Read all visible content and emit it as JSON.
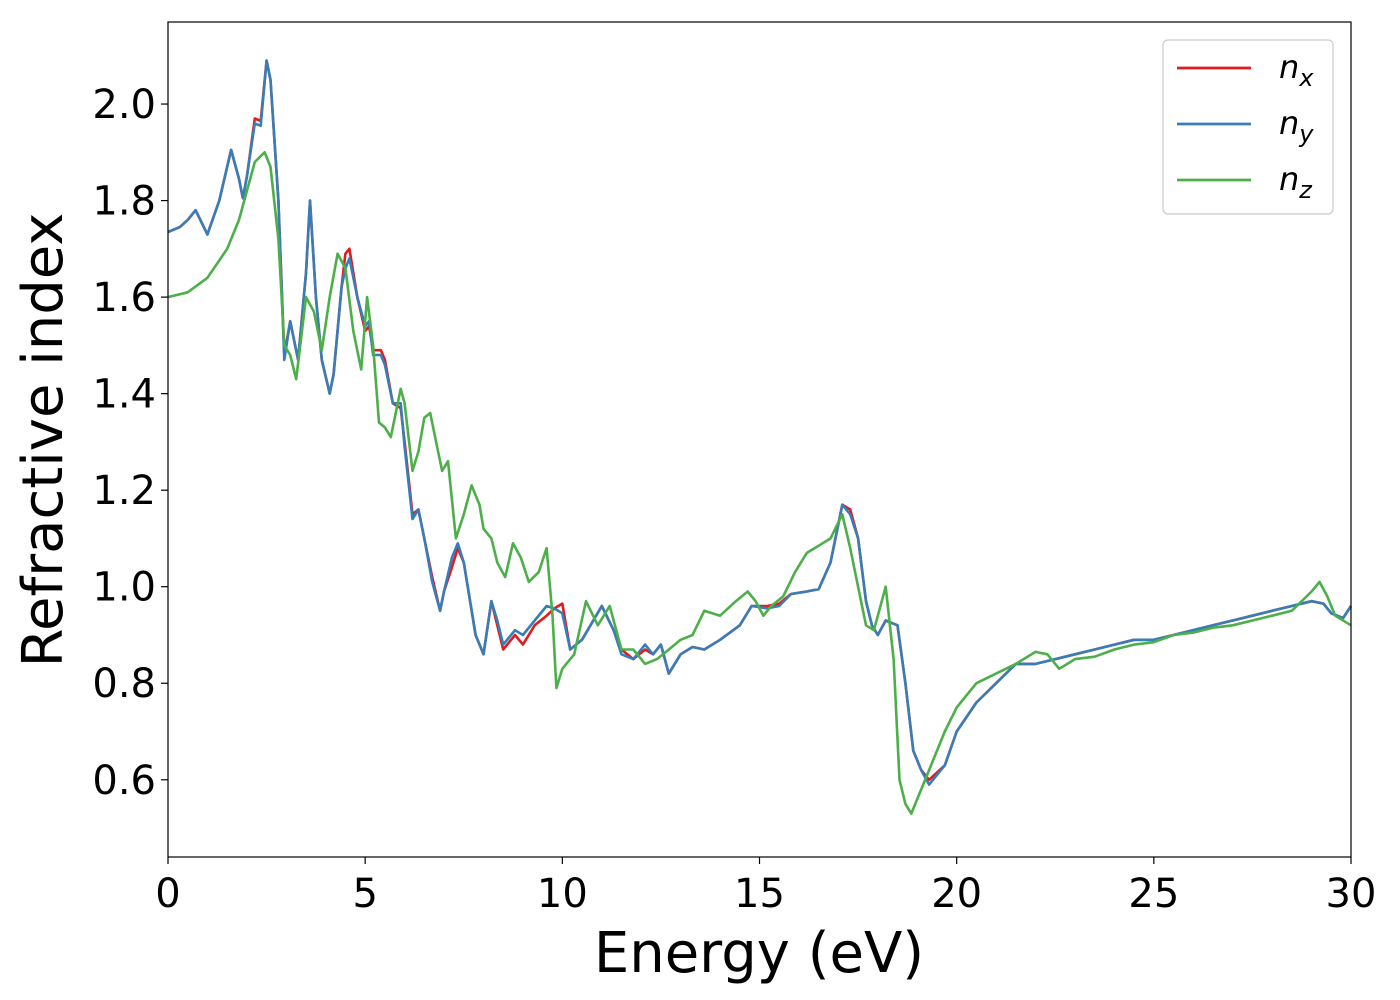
{
  "chart_data": {
    "type": "line",
    "title": "",
    "xlabel": "Energy (eV)",
    "ylabel": "Refractive index",
    "xlim": [
      0,
      30
    ],
    "ylim": [
      0.44,
      2.17
    ],
    "xticks": [
      0,
      5,
      10,
      15,
      20,
      25,
      30
    ],
    "xtick_labels": [
      "0",
      "5",
      "10",
      "15",
      "20",
      "25",
      "30"
    ],
    "yticks": [
      0.6,
      0.8,
      1.0,
      1.2,
      1.4,
      1.6,
      1.8,
      2.0
    ],
    "ytick_labels": [
      "0.6",
      "0.8",
      "1.0",
      "1.2",
      "1.4",
      "1.6",
      "1.8",
      "2.0"
    ],
    "grid": false,
    "legend_position": "top-right",
    "series": [
      {
        "name": "n_x",
        "label_base": "n",
        "label_sub": "x",
        "color": "#e41a1c",
        "x": [
          0,
          0.3,
          0.5,
          0.7,
          0.85,
          1.0,
          1.3,
          1.6,
          1.8,
          1.9,
          2.0,
          2.2,
          2.35,
          2.5,
          2.6,
          2.8,
          2.95,
          3.1,
          3.3,
          3.5,
          3.6,
          3.75,
          3.9,
          4.1,
          4.2,
          4.4,
          4.5,
          4.6,
          4.8,
          5.0,
          5.1,
          5.2,
          5.4,
          5.5,
          5.7,
          5.9,
          6.0,
          6.2,
          6.35,
          6.5,
          6.7,
          6.9,
          7.0,
          7.2,
          7.35,
          7.5,
          7.8,
          8.0,
          8.2,
          8.35,
          8.5,
          8.8,
          9.0,
          9.3,
          9.6,
          9.8,
          10.0,
          10.2,
          10.5,
          11.0,
          11.3,
          11.5,
          11.8,
          12.1,
          12.3,
          12.5,
          12.7,
          13.0,
          13.3,
          13.6,
          14.0,
          14.5,
          14.8,
          15.2,
          15.5,
          15.8,
          16.2,
          16.5,
          16.8,
          17.1,
          17.3,
          17.5,
          17.7,
          17.85,
          18.0,
          18.2,
          18.5,
          18.7,
          18.9,
          19.1,
          19.3,
          19.7,
          20.0,
          20.5,
          21.0,
          21.5,
          22.0,
          22.5,
          23.0,
          23.5,
          24.0,
          24.5,
          25.0,
          25.5,
          26.0,
          26.5,
          27.0,
          27.5,
          28.0,
          28.5,
          29.0,
          29.3,
          29.5,
          29.8,
          30.0
        ],
        "y": [
          1.735,
          1.745,
          1.76,
          1.78,
          1.755,
          1.73,
          1.8,
          1.905,
          1.845,
          1.805,
          1.85,
          1.97,
          1.965,
          2.09,
          2.05,
          1.8,
          1.48,
          1.55,
          1.47,
          1.65,
          1.8,
          1.6,
          1.47,
          1.4,
          1.44,
          1.62,
          1.69,
          1.7,
          1.6,
          1.53,
          1.54,
          1.49,
          1.49,
          1.47,
          1.38,
          1.37,
          1.3,
          1.15,
          1.16,
          1.1,
          1.02,
          0.95,
          0.99,
          1.04,
          1.08,
          1.05,
          0.9,
          0.86,
          0.97,
          0.92,
          0.87,
          0.9,
          0.88,
          0.92,
          0.94,
          0.955,
          0.965,
          0.87,
          0.89,
          0.96,
          0.91,
          0.87,
          0.85,
          0.87,
          0.86,
          0.88,
          0.82,
          0.86,
          0.875,
          0.87,
          0.89,
          0.92,
          0.96,
          0.96,
          0.965,
          0.985,
          0.99,
          0.995,
          1.05,
          1.17,
          1.16,
          1.1,
          0.97,
          0.92,
          0.9,
          0.93,
          0.92,
          0.8,
          0.66,
          0.62,
          0.6,
          0.63,
          0.7,
          0.76,
          0.8,
          0.84,
          0.84,
          0.85,
          0.86,
          0.87,
          0.88,
          0.89,
          0.89,
          0.9,
          0.91,
          0.92,
          0.93,
          0.94,
          0.95,
          0.96,
          0.97,
          0.965,
          0.945,
          0.935,
          0.96
        ]
      },
      {
        "name": "n_y",
        "label_base": "n",
        "label_sub": "y",
        "color": "#377eb8",
        "x": [
          0,
          0.3,
          0.5,
          0.7,
          0.85,
          1.0,
          1.3,
          1.6,
          1.8,
          1.9,
          2.0,
          2.2,
          2.35,
          2.5,
          2.6,
          2.8,
          2.95,
          3.1,
          3.3,
          3.5,
          3.6,
          3.75,
          3.9,
          4.1,
          4.2,
          4.4,
          4.5,
          4.6,
          4.8,
          5.0,
          5.1,
          5.2,
          5.4,
          5.5,
          5.7,
          5.9,
          6.0,
          6.2,
          6.35,
          6.5,
          6.7,
          6.9,
          7.0,
          7.2,
          7.35,
          7.5,
          7.8,
          8.0,
          8.2,
          8.35,
          8.5,
          8.8,
          9.0,
          9.3,
          9.6,
          9.8,
          10.0,
          10.2,
          10.5,
          11.0,
          11.3,
          11.5,
          11.8,
          12.1,
          12.3,
          12.5,
          12.7,
          13.0,
          13.3,
          13.6,
          14.0,
          14.5,
          14.8,
          15.2,
          15.5,
          15.8,
          16.2,
          16.5,
          16.8,
          17.1,
          17.3,
          17.5,
          17.7,
          17.85,
          18.0,
          18.2,
          18.5,
          18.7,
          18.9,
          19.1,
          19.3,
          19.7,
          20.0,
          20.5,
          21.0,
          21.5,
          22.0,
          22.5,
          23.0,
          23.5,
          24.0,
          24.5,
          25.0,
          25.5,
          26.0,
          26.5,
          27.0,
          27.5,
          28.0,
          28.5,
          29.0,
          29.3,
          29.5,
          29.8,
          30.0
        ],
        "y": [
          1.735,
          1.745,
          1.76,
          1.78,
          1.755,
          1.73,
          1.8,
          1.905,
          1.845,
          1.805,
          1.85,
          1.96,
          1.955,
          2.09,
          2.05,
          1.8,
          1.47,
          1.55,
          1.47,
          1.65,
          1.8,
          1.6,
          1.47,
          1.4,
          1.44,
          1.62,
          1.66,
          1.68,
          1.6,
          1.54,
          1.55,
          1.48,
          1.48,
          1.46,
          1.38,
          1.38,
          1.29,
          1.14,
          1.16,
          1.1,
          1.01,
          0.95,
          0.99,
          1.06,
          1.09,
          1.05,
          0.9,
          0.86,
          0.97,
          0.93,
          0.88,
          0.91,
          0.9,
          0.93,
          0.96,
          0.955,
          0.945,
          0.87,
          0.89,
          0.96,
          0.91,
          0.86,
          0.85,
          0.88,
          0.86,
          0.88,
          0.82,
          0.86,
          0.875,
          0.87,
          0.89,
          0.92,
          0.96,
          0.955,
          0.96,
          0.985,
          0.99,
          0.995,
          1.05,
          1.17,
          1.15,
          1.1,
          0.97,
          0.92,
          0.9,
          0.93,
          0.92,
          0.8,
          0.66,
          0.62,
          0.59,
          0.63,
          0.7,
          0.76,
          0.8,
          0.84,
          0.84,
          0.85,
          0.86,
          0.87,
          0.88,
          0.89,
          0.89,
          0.9,
          0.91,
          0.92,
          0.93,
          0.94,
          0.95,
          0.96,
          0.97,
          0.965,
          0.945,
          0.935,
          0.96
        ]
      },
      {
        "name": "n_z",
        "label_base": "n",
        "label_sub": "z",
        "color": "#4daf4a",
        "x": [
          0,
          0.5,
          1.0,
          1.5,
          1.8,
          2.0,
          2.2,
          2.45,
          2.6,
          2.8,
          2.95,
          3.1,
          3.25,
          3.5,
          3.7,
          3.9,
          4.1,
          4.3,
          4.5,
          4.7,
          4.9,
          5.05,
          5.2,
          5.35,
          5.5,
          5.65,
          5.9,
          6.0,
          6.2,
          6.35,
          6.5,
          6.65,
          6.8,
          6.95,
          7.1,
          7.3,
          7.5,
          7.7,
          7.9,
          8.0,
          8.2,
          8.35,
          8.55,
          8.75,
          8.95,
          9.15,
          9.4,
          9.6,
          9.75,
          9.85,
          10.0,
          10.3,
          10.6,
          10.9,
          11.2,
          11.5,
          11.8,
          12.1,
          12.4,
          12.7,
          13.0,
          13.3,
          13.6,
          14.0,
          14.4,
          14.7,
          14.9,
          15.1,
          15.3,
          15.6,
          15.9,
          16.2,
          16.4,
          16.6,
          16.8,
          17.1,
          17.3,
          17.5,
          17.7,
          17.9,
          18.2,
          18.4,
          18.55,
          18.7,
          18.85,
          19.0,
          19.3,
          19.7,
          20.0,
          20.5,
          21.0,
          21.5,
          22.0,
          22.3,
          22.6,
          23.0,
          23.5,
          24.0,
          24.5,
          25.0,
          25.5,
          26.0,
          26.5,
          27.0,
          27.5,
          28.0,
          28.5,
          29.0,
          29.2,
          29.4,
          29.6,
          30.0
        ],
        "y": [
          1.6,
          1.61,
          1.64,
          1.7,
          1.76,
          1.82,
          1.88,
          1.9,
          1.87,
          1.72,
          1.5,
          1.48,
          1.43,
          1.6,
          1.57,
          1.49,
          1.6,
          1.69,
          1.66,
          1.53,
          1.45,
          1.6,
          1.5,
          1.34,
          1.33,
          1.31,
          1.41,
          1.38,
          1.24,
          1.28,
          1.35,
          1.36,
          1.3,
          1.24,
          1.26,
          1.1,
          1.15,
          1.21,
          1.17,
          1.12,
          1.1,
          1.05,
          1.02,
          1.09,
          1.06,
          1.01,
          1.03,
          1.08,
          0.94,
          0.79,
          0.83,
          0.86,
          0.97,
          0.92,
          0.96,
          0.87,
          0.87,
          0.84,
          0.85,
          0.87,
          0.89,
          0.9,
          0.95,
          0.94,
          0.97,
          0.99,
          0.97,
          0.94,
          0.96,
          0.98,
          1.03,
          1.07,
          1.08,
          1.09,
          1.1,
          1.15,
          1.08,
          1.0,
          0.92,
          0.91,
          1.0,
          0.85,
          0.6,
          0.55,
          0.53,
          0.56,
          0.62,
          0.7,
          0.75,
          0.8,
          0.82,
          0.84,
          0.865,
          0.86,
          0.83,
          0.85,
          0.855,
          0.87,
          0.88,
          0.885,
          0.9,
          0.905,
          0.915,
          0.92,
          0.93,
          0.94,
          0.95,
          0.99,
          1.01,
          0.98,
          0.94,
          0.92
        ]
      }
    ]
  }
}
